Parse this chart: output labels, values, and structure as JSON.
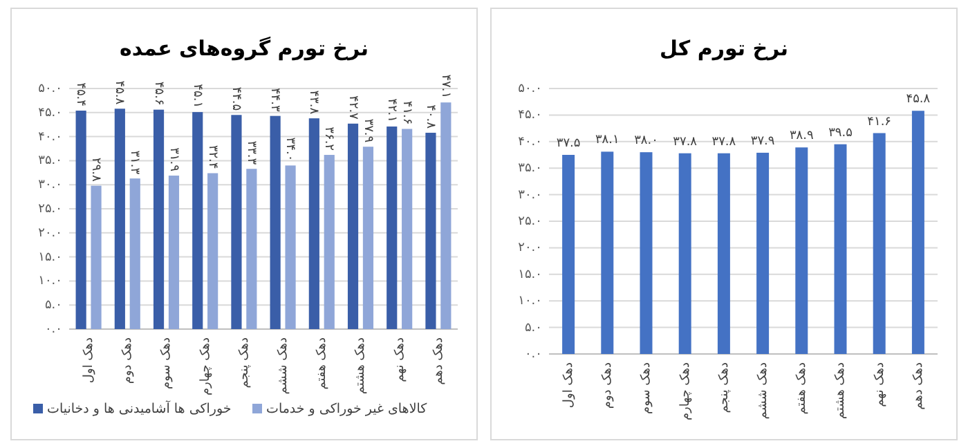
{
  "chart_data": [
    {
      "type": "bar",
      "title": "نرخ تورم گروه‌های عمده",
      "categories": [
        "دهک اول",
        "دهک دوم",
        "دهک سوم",
        "دهک چهارم",
        "دهک پنجم",
        "دهک ششم",
        "دهک هفتم",
        "دهک هشتم",
        "دهک نهم",
        "دهک دهم"
      ],
      "series": [
        {
          "name": "خوراکی ها آشامیدنی ها و دخانیات",
          "color": "#3a5ea8",
          "values": [
            45.4,
            45.8,
            45.6,
            45.1,
            44.5,
            44.3,
            43.8,
            42.7,
            42.1,
            40.8
          ],
          "value_labels": [
            "۴۵.۴",
            "۴۵.۸",
            "۴۵.۶",
            "۴۵.۱",
            "۴۴.۵",
            "۴۴.۳",
            "۴۳.۸",
            "۴۲.۷",
            "۴۲.۱",
            "۴۰.۸"
          ]
        },
        {
          "name": "کالاهای غیر خوراکی و خدمات",
          "color": "#8fa6d8",
          "values": [
            29.8,
            31.3,
            31.9,
            32.4,
            33.3,
            34.0,
            36.2,
            37.9,
            41.6,
            47.1
          ],
          "value_labels": [
            "۲۹.۸",
            "۳۱.۳",
            "۳۱.۹",
            "۳۲.۴",
            "۳۳.۳",
            "۳۴.۰",
            "۳۶.۲",
            "۳۷.۹",
            "۴۱.۶",
            "۴۷.۱"
          ]
        }
      ],
      "ylim": [
        0,
        50
      ],
      "yticks": [
        {
          "value": 0,
          "label": "۰.۰"
        },
        {
          "value": 5,
          "label": "۵.۰"
        },
        {
          "value": 10,
          "label": "۱۰.۰"
        },
        {
          "value": 15,
          "label": "۱۵.۰"
        },
        {
          "value": 20,
          "label": "۲۰.۰"
        },
        {
          "value": 25,
          "label": "۲۵.۰"
        },
        {
          "value": 30,
          "label": "۳۰.۰"
        },
        {
          "value": 35,
          "label": "۳۵.۰"
        },
        {
          "value": 40,
          "label": "۴۰.۰"
        },
        {
          "value": 45,
          "label": "۴۵.۰"
        },
        {
          "value": 50,
          "label": "۵۰.۰"
        }
      ],
      "grid": "y",
      "legend": "bottom"
    },
    {
      "type": "bar",
      "title": "نرخ تورم کل",
      "categories": [
        "دهک اول",
        "دهک دوم",
        "دهک سوم",
        "دهک چهارم",
        "دهک پنجم",
        "دهک ششم",
        "دهک هفتم",
        "دهک هشتم",
        "دهک نهم",
        "دهک دهم"
      ],
      "series": [
        {
          "color": "#4472c4",
          "values": [
            37.5,
            38.1,
            38.0,
            37.8,
            37.8,
            37.9,
            38.9,
            39.5,
            41.6,
            45.8
          ],
          "value_labels": [
            "۳۷.۵",
            "۳۸.۱",
            "۳۸.۰",
            "۳۷.۸",
            "۳۷.۸",
            "۳۷.۹",
            "۳۸.۹",
            "۳۹.۵",
            "۴۱.۶",
            "۴۵.۸"
          ]
        }
      ],
      "ylim": [
        0,
        50
      ],
      "yticks": [
        {
          "value": 0,
          "label": "۰.۰"
        },
        {
          "value": 5,
          "label": "۵.۰"
        },
        {
          "value": 10,
          "label": "۱۰.۰"
        },
        {
          "value": 15,
          "label": "۱۵.۰"
        },
        {
          "value": 20,
          "label": "۲۰.۰"
        },
        {
          "value": 25,
          "label": "۲۵.۰"
        },
        {
          "value": 30,
          "label": "۳۰.۰"
        },
        {
          "value": 35,
          "label": "۳۵.۰"
        },
        {
          "value": 40,
          "label": "۴۰.۰"
        },
        {
          "value": 45,
          "label": "۴۵.۰"
        },
        {
          "value": 50,
          "label": "۵۰.۰"
        }
      ],
      "grid": "y"
    }
  ]
}
